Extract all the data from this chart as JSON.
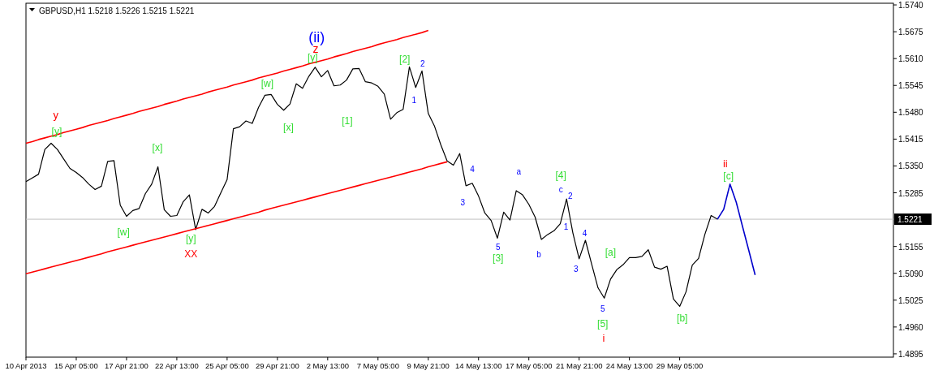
{
  "chart_data": {
    "type": "line",
    "title": "GBPUSD,H1  1.5218 1.5226 1.5215 1.5221",
    "categories": [
      "10 Apr 2013",
      null,
      null,
      null,
      null,
      null,
      null,
      null,
      "15 Apr 05:00",
      null,
      null,
      null,
      null,
      null,
      null,
      null,
      "17 Apr 21:00",
      null,
      null,
      null,
      null,
      null,
      null,
      null,
      "22 Apr 13:00",
      null,
      null,
      null,
      null,
      null,
      null,
      null,
      "25 Apr 05:00",
      null,
      null,
      null,
      null,
      null,
      null,
      null,
      "29 Apr 21:00",
      null,
      null,
      null,
      null,
      null,
      null,
      null,
      "2 May 13:00",
      null,
      null,
      null,
      null,
      null,
      null,
      null,
      "7 May 05:00",
      null,
      null,
      null,
      null,
      null,
      null,
      null,
      "9 May 21:00",
      null,
      null,
      null,
      null,
      null,
      null,
      null,
      "14 May 13:00",
      null,
      null,
      null,
      null,
      null,
      null,
      null,
      "17 May 05:00",
      null,
      null,
      null,
      null,
      null,
      null,
      null,
      "21 May 21:00",
      null,
      null,
      null,
      null,
      null,
      null,
      null,
      "24 May 13:00",
      null,
      null,
      null,
      null,
      null,
      null,
      null,
      "29 May 05:00",
      null,
      null,
      null,
      null,
      null,
      null,
      null,
      null,
      null,
      null,
      null,
      null,
      null,
      null,
      null,
      null,
      null,
      null,
      null,
      null,
      null,
      null,
      null,
      null,
      null,
      null,
      null,
      null,
      null,
      null,
      null,
      null,
      null,
      null
    ],
    "ylim": [
      1.4887,
      1.5744
    ],
    "yticks": [
      {
        "value": 1.4895,
        "label": "1.4895"
      },
      {
        "value": 1.496,
        "label": "1.4960"
      },
      {
        "value": 1.5025,
        "label": "1.5025"
      },
      {
        "value": 1.509,
        "label": "1.5090"
      },
      {
        "value": 1.5155,
        "label": "1.5155"
      },
      {
        "value": 1.5285,
        "label": "1.5285"
      },
      {
        "value": 1.535,
        "label": "1.5350"
      },
      {
        "value": 1.5415,
        "label": "1.5415"
      },
      {
        "value": 1.548,
        "label": "1.5480"
      },
      {
        "value": 1.5545,
        "label": "1.5545"
      },
      {
        "value": 1.561,
        "label": "1.5610"
      },
      {
        "value": 1.5675,
        "label": "1.5675"
      },
      {
        "value": 1.574,
        "label": "1.5740"
      }
    ],
    "marker": "none",
    "series": [
      {
        "color": "#000000",
        "values": [
          1.5312,
          1.5321,
          1.533,
          1.539,
          1.5405,
          1.539,
          1.5367,
          1.5344,
          1.5334,
          1.5322,
          1.5306,
          1.5293,
          1.5301,
          1.5361,
          1.5363,
          1.5255,
          1.5228,
          1.5242,
          1.5247,
          1.5283,
          1.5306,
          1.5348,
          1.5244,
          1.5228,
          1.523,
          1.5263,
          1.528,
          1.5196,
          1.5245,
          1.5236,
          1.5252,
          1.5285,
          1.5317,
          1.544,
          1.5445,
          1.5459,
          1.5453,
          1.5492,
          1.5521,
          1.5523,
          1.5499,
          1.5485,
          1.55,
          1.5549,
          1.5538,
          1.5567,
          1.5589,
          1.5566,
          1.5581,
          1.5544,
          1.5546,
          1.5558,
          1.5585,
          1.5586,
          1.5554,
          1.5551,
          1.5543,
          1.5524,
          1.5463,
          1.5479,
          1.5487,
          1.559,
          1.554,
          1.558,
          1.5477,
          1.5446,
          1.5401,
          1.5362,
          1.5352,
          1.538,
          1.5302,
          1.5308,
          1.5277,
          1.5236,
          1.5218,
          1.5175,
          1.5238,
          1.5219,
          1.529,
          1.528,
          1.5257,
          1.5226,
          1.5172,
          1.5184,
          1.5193,
          1.521,
          1.527,
          1.5188,
          1.5125,
          1.517,
          1.5112,
          1.5055,
          1.503,
          1.5076,
          1.5099,
          1.5111,
          1.5128,
          1.5128,
          1.5131,
          1.5147,
          1.5105,
          1.51,
          1.5107,
          1.5028,
          1.501,
          1.5045,
          1.511,
          1.5126,
          1.5184,
          1.523,
          1.5221,
          null,
          null,
          null,
          null,
          null,
          null,
          null,
          null,
          null,
          null,
          null,
          null,
          null,
          null,
          null,
          null,
          null,
          null,
          null,
          null,
          null,
          null,
          null,
          null,
          null,
          null,
          null,
          null
        ]
      },
      {
        "color": "#0000cc",
        "values": [
          null,
          null,
          null,
          null,
          null,
          null,
          null,
          null,
          null,
          null,
          null,
          null,
          null,
          null,
          null,
          null,
          null,
          null,
          null,
          null,
          null,
          null,
          null,
          null,
          null,
          null,
          null,
          null,
          null,
          null,
          null,
          null,
          null,
          null,
          null,
          null,
          null,
          null,
          null,
          null,
          null,
          null,
          null,
          null,
          null,
          null,
          null,
          null,
          null,
          null,
          null,
          null,
          null,
          null,
          null,
          null,
          null,
          null,
          null,
          null,
          null,
          null,
          null,
          null,
          null,
          null,
          null,
          null,
          null,
          null,
          null,
          null,
          null,
          null,
          null,
          null,
          null,
          null,
          null,
          null,
          null,
          null,
          null,
          null,
          null,
          null,
          null,
          null,
          null,
          null,
          null,
          null,
          null,
          null,
          null,
          null,
          null,
          null,
          null,
          null,
          null,
          null,
          null,
          null,
          null,
          null,
          null,
          null,
          null,
          null,
          1.5221,
          1.5245,
          1.5306,
          1.5262,
          1.5203,
          1.5145,
          1.5086,
          null,
          null,
          null,
          null,
          null,
          null,
          null,
          null,
          null,
          null,
          null,
          null,
          null,
          null,
          null,
          null,
          null,
          null,
          null,
          null,
          null,
          null
        ]
      },
      {
        "color": "#ff0000",
        "values": [
          1.5405,
          1.5409,
          1.5414,
          1.5418,
          1.5422,
          1.5426,
          1.5431,
          1.5435,
          1.5439,
          1.5443,
          1.5448,
          1.5452,
          1.5456,
          1.546,
          1.5465,
          1.5469,
          1.5473,
          1.5477,
          1.5482,
          1.5486,
          1.549,
          1.5494,
          1.5499,
          1.5503,
          1.5507,
          1.5512,
          1.5516,
          1.552,
          1.5524,
          1.5529,
          1.5533,
          1.5537,
          1.5541,
          1.5546,
          1.555,
          1.5554,
          1.5558,
          1.5563,
          1.5567,
          1.5571,
          1.5575,
          1.558,
          1.5584,
          1.5588,
          1.5592,
          1.5597,
          1.5601,
          1.5605,
          1.5609,
          1.5614,
          1.5618,
          1.5622,
          1.5627,
          1.5631,
          1.5635,
          1.5639,
          1.5644,
          1.5648,
          1.5652,
          1.5656,
          1.5661,
          1.5665,
          1.5669,
          1.5673,
          1.5678,
          null,
          null,
          null,
          null,
          null,
          null,
          null,
          null,
          null,
          null,
          null,
          null,
          null,
          null,
          null,
          null,
          null,
          null,
          null,
          null,
          null,
          null,
          null,
          null,
          null,
          null,
          null,
          null,
          null,
          null,
          null,
          null,
          null,
          null,
          null,
          null,
          null,
          null,
          null,
          null,
          null,
          null,
          null,
          null,
          null,
          null,
          null,
          null,
          null,
          null,
          null,
          null,
          null,
          null,
          null,
          null,
          null,
          null,
          null,
          null,
          null,
          null,
          null,
          null,
          null,
          null,
          null,
          null,
          null,
          null,
          null,
          null,
          null,
          null
        ]
      },
      {
        "color": "#ff0000",
        "values": [
          1.5089,
          1.5093,
          1.5097,
          1.5101,
          1.5105,
          1.5109,
          1.5113,
          1.5117,
          1.5121,
          1.5125,
          1.5129,
          1.5133,
          1.5137,
          1.5142,
          1.5146,
          1.515,
          1.5154,
          1.5158,
          1.5162,
          1.5166,
          1.517,
          1.5174,
          1.5178,
          1.5182,
          1.5186,
          1.519,
          1.5194,
          1.5198,
          1.5202,
          1.5206,
          1.521,
          1.5214,
          1.5218,
          1.5222,
          1.5226,
          1.523,
          1.5234,
          1.5238,
          1.5243,
          1.5247,
          1.5251,
          1.5255,
          1.5259,
          1.5263,
          1.5267,
          1.5271,
          1.5275,
          1.5279,
          1.5283,
          1.5287,
          1.5291,
          1.5295,
          1.5299,
          1.5303,
          1.5307,
          1.5311,
          1.5315,
          1.5319,
          1.5323,
          1.5327,
          1.5331,
          1.5335,
          1.5339,
          1.5343,
          1.5348,
          1.5352,
          1.5356,
          1.536,
          null,
          null,
          null,
          null,
          null,
          null,
          null,
          null,
          null,
          null,
          null,
          null,
          null,
          null,
          null,
          null,
          null,
          null,
          null,
          null,
          null,
          null,
          null,
          null,
          null,
          null,
          null,
          null,
          null,
          null,
          null,
          null,
          null,
          null,
          null,
          null,
          null,
          null,
          null,
          null,
          null,
          null,
          null,
          null,
          null,
          null,
          null,
          null,
          null,
          null,
          null,
          null,
          null,
          null,
          null,
          null,
          null,
          null,
          null,
          null,
          null,
          null,
          null,
          null,
          null,
          null,
          null,
          null,
          null,
          null,
          null
        ]
      }
    ],
    "ref_lines": [
      {
        "axis": "y",
        "value": 1.5221,
        "label": "1.5221",
        "color": "#c0c0c0"
      }
    ],
    "annotations": [
      "y",
      "[y]",
      "[x]",
      "[w]",
      "[y]",
      "XX",
      "[w]",
      "[x]",
      "(ii)",
      "z",
      "[y]",
      "[1]",
      "[2]",
      "2",
      "1",
      "4",
      "3",
      "a",
      "[4]",
      "c",
      "2",
      "1",
      "4",
      "3",
      "5",
      "[3]",
      "b",
      "[a]",
      "5",
      "[5]",
      "i",
      "[b]",
      "ii",
      "[c]"
    ]
  }
}
